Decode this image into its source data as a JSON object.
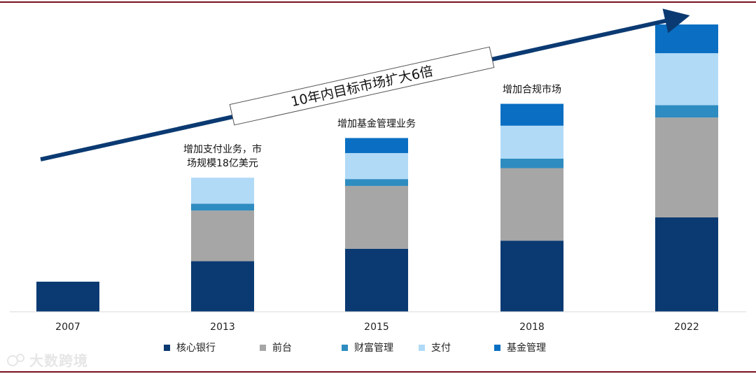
{
  "chart_data": {
    "type": "bar",
    "stacked": true,
    "title": "",
    "categories": [
      "2007",
      "2013",
      "2015",
      "2018",
      "2022"
    ],
    "ylim": [
      0,
      105
    ],
    "series": [
      {
        "name": "核心银行",
        "color": "#0b3a72",
        "values": [
          11,
          18.5,
          23,
          26,
          34.5
        ]
      },
      {
        "name": "前台",
        "color": "#a6a6a6",
        "values": [
          0,
          18.5,
          23,
          26.5,
          36.5
        ]
      },
      {
        "name": "财富管理",
        "color": "#2e8cc0",
        "values": [
          0,
          2.5,
          2.5,
          3.5,
          4.5
        ]
      },
      {
        "name": "支付",
        "color": "#b1daf7",
        "values": [
          0,
          9.5,
          9.5,
          12,
          19
        ]
      },
      {
        "name": "基金管理",
        "color": "#0a6fc2",
        "values": [
          0,
          0,
          5.5,
          8,
          10.5
        ]
      }
    ],
    "annotations": [
      {
        "category": "2013",
        "lines": [
          "增加支付业务，市",
          "场规模18亿美元"
        ]
      },
      {
        "category": "2015",
        "lines": [
          "增加基金管理业务"
        ]
      },
      {
        "category": "2018",
        "lines": [
          "增加合规市场"
        ]
      }
    ],
    "trend_label": "10年内目标市场扩大6倍"
  },
  "watermark": "大数跨境"
}
